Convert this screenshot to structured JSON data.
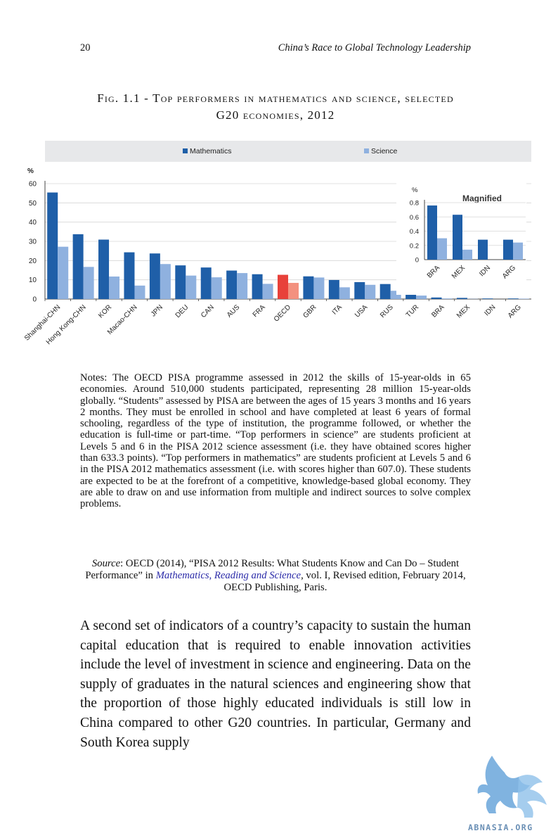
{
  "header": {
    "page_number": "20",
    "running_title": "China’s Race to Global Technology Leadership"
  },
  "figure": {
    "caption_line1": "Fig. 1.1 - Top performers in mathematics and science, selected",
    "caption_line2": "G20 economies, 2012"
  },
  "chart_data": [
    {
      "type": "bar",
      "title": "",
      "legend": [
        "Mathematics",
        "Science"
      ],
      "legend_placement": "top",
      "ylabel": "%",
      "ylim": [
        0,
        60
      ],
      "yticks": [
        0,
        10,
        20,
        30,
        40,
        50,
        60
      ],
      "grid": true,
      "categories": [
        "Shanghai-CHN",
        "Hong Kong-CHN",
        "KOR",
        "Macao-CHN",
        "JPN",
        "DEU",
        "CAN",
        "AUS",
        "FRA",
        "OECD",
        "GBR",
        "ITA",
        "USA",
        "RUS",
        "TUR",
        "BRA",
        "MEX",
        "IDN",
        "ARG"
      ],
      "series": [
        {
          "name": "Mathematics",
          "values": [
            55.4,
            33.7,
            30.9,
            24.3,
            23.7,
            17.5,
            16.4,
            14.8,
            12.9,
            12.6,
            11.8,
            9.9,
            8.8,
            7.8,
            5.9,
            0.8,
            0.6,
            0.3,
            0.3
          ]
        },
        {
          "name": "Science",
          "values": [
            27.2,
            16.7,
            11.7,
            7.0,
            18.2,
            12.2,
            11.3,
            13.5,
            7.9,
            8.4,
            11.2,
            6.1,
            7.4,
            4.3,
            1.8,
            0.3,
            0.1,
            0.0,
            0.2
          ]
        }
      ],
      "highlight_category": "OECD",
      "colors": {
        "Mathematics": "#1f5fa8",
        "Science": "#8fb1df",
        "Mathematics_highlight": "#e8413a",
        "Science_highlight": "#f3917f"
      }
    },
    {
      "type": "bar",
      "title": "Magnified",
      "ylabel": "%",
      "ylim": [
        0,
        0.8
      ],
      "yticks": [
        0,
        0.2,
        0.4,
        0.6,
        0.8
      ],
      "grid": true,
      "categories": [
        "BRA",
        "MEX",
        "IDN",
        "ARG"
      ],
      "series": [
        {
          "name": "Mathematics",
          "values": [
            0.76,
            0.63,
            0.28,
            0.28
          ]
        },
        {
          "name": "Science",
          "values": [
            0.3,
            0.14,
            0.0,
            0.24
          ]
        }
      ]
    }
  ],
  "notes": {
    "text": "Notes: The OECD PISA programme assessed in 2012 the skills of 15-year-olds in 65 economies. Around 510,000 students participated, representing 28 million 15-year-olds globally. “Students” assessed by PISA are between the ages of 15 years 3 months and 16 years 2 months. They must be enrolled in school and have completed at least 6 years of formal schooling, regardless of the type of institution, the programme followed, or whether the education is full-time or part-time. “Top performers in science” are students proficient at Levels 5 and 6 in the PISA 2012 science assessment (i.e. they have obtained scores higher than 633.3 points). “Top performers in mathematics” are students proficient at Levels 5 and 6 in the PISA 2012 mathematics assessment (i.e. with scores higher than 607.0). These students are expected to be at the forefront of a competitive, knowledge-based global economy. They are able to draw on and use information from multiple and indirect sources to solve complex problems."
  },
  "source": {
    "label": "Source",
    "text_before": ": OECD (2014), “PISA 2012 Results: What Students Know and Can Do – Student Performance” in ",
    "link_text": "Mathematics, Reading and Science",
    "text_after": ", vol. I, Revised edition, February 2014, OECD Publishing, Paris."
  },
  "body": {
    "paragraph": "A second set of indicators of a country’s capacity to sustain the human capital education that is required to enable innovation activities include the level of investment in science and engi­neering. Data on the supply of graduates in the natural scienc­es and engineering show that the proportion of those highly educated individuals is still low in China compared to other G20 countries. In particular, Germany and South Korea supply"
  },
  "watermark": {
    "text": "ABNASIA.ORG",
    "icon": "griffin-logo-icon",
    "color": "#5b9bd5"
  }
}
